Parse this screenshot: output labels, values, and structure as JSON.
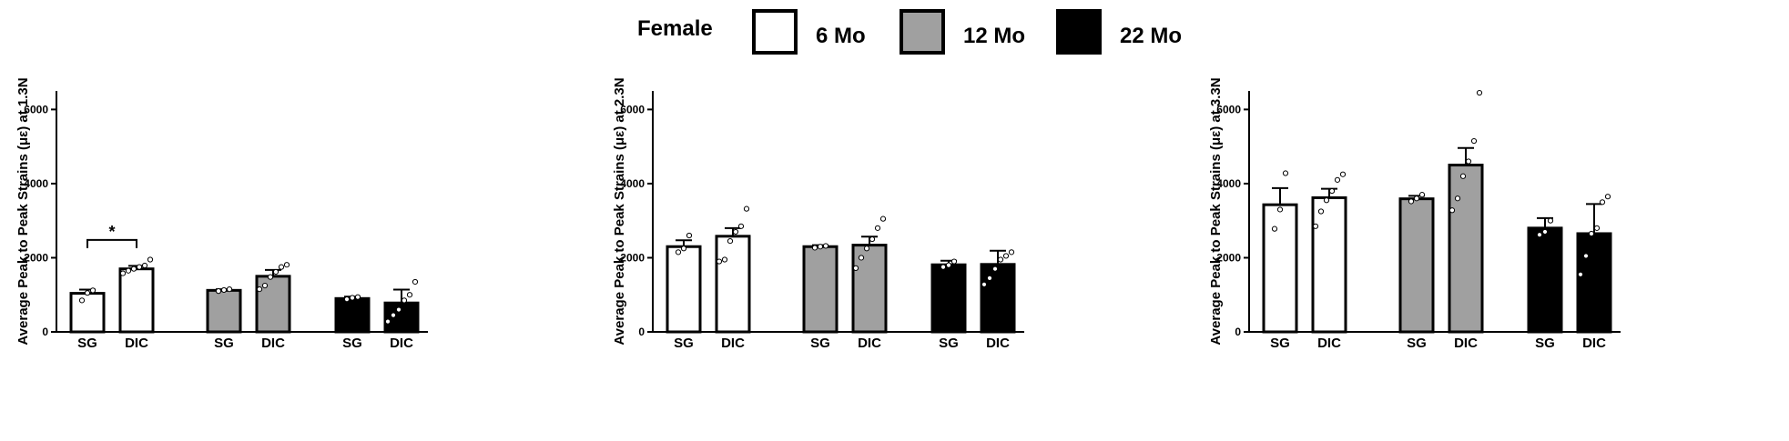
{
  "legend": {
    "title": "Female",
    "items": [
      {
        "label": "6 Mo",
        "color": "#ffffff"
      },
      {
        "label": "12 Mo",
        "color": "#a0a0a0"
      },
      {
        "label": "22 Mo",
        "color": "#000000"
      }
    ]
  },
  "chart_data": [
    {
      "type": "bar",
      "ylabel": "Average Peak to Peak Strains (με) at 1.3N",
      "ylim": [
        0,
        6500
      ],
      "yticks": [
        0,
        2000,
        4000,
        6000
      ],
      "categories": [
        "SG",
        "DIC",
        "SG",
        "DIC",
        "SG",
        "DIC"
      ],
      "groups": [
        "6 Mo",
        "6 Mo",
        "12 Mo",
        "12 Mo",
        "22 Mo",
        "22 Mo"
      ],
      "values": [
        1040,
        1700,
        1120,
        1500,
        900,
        780
      ],
      "errors": [
        100,
        80,
        30,
        170,
        50,
        360
      ],
      "points": [
        [
          850,
          1050,
          1120
        ],
        [
          1580,
          1650,
          1700,
          1750,
          1790,
          1950
        ],
        [
          1100,
          1130,
          1150
        ],
        [
          1150,
          1250,
          1480,
          1620,
          1750,
          1810
        ],
        [
          880,
          920,
          940
        ],
        [
          280,
          450,
          600,
          850,
          1000,
          1350
        ]
      ],
      "significance": {
        "label": "*",
        "between": [
          0,
          1
        ],
        "y": 2480
      }
    },
    {
      "type": "bar",
      "ylabel": "Average Peak to Peak Strains (με) at 2.3N",
      "ylim": [
        0,
        6500
      ],
      "yticks": [
        0,
        2000,
        4000,
        6000
      ],
      "categories": [
        "SG",
        "DIC",
        "SG",
        "DIC",
        "SG",
        "DIC"
      ],
      "groups": [
        "6 Mo",
        "6 Mo",
        "12 Mo",
        "12 Mo",
        "22 Mo",
        "22 Mo"
      ],
      "values": [
        2300,
        2580,
        2300,
        2340,
        1810,
        1820
      ],
      "errors": [
        170,
        220,
        40,
        230,
        110,
        370
      ],
      "points": [
        [
          2150,
          2250,
          2600
        ],
        [
          1900,
          1950,
          2450,
          2700,
          2850,
          3320
        ],
        [
          2270,
          2300,
          2320
        ],
        [
          1720,
          2000,
          2250,
          2500,
          2800,
          3050
        ],
        [
          1750,
          1800,
          1900
        ],
        [
          1280,
          1450,
          1700,
          1950,
          2050,
          2150
        ]
      ]
    },
    {
      "type": "bar",
      "ylabel": "Average Peak to Peak Strains (με) at 3.3N",
      "ylim": [
        0,
        6500
      ],
      "yticks": [
        0,
        2000,
        4000,
        6000
      ],
      "categories": [
        "SG",
        "DIC",
        "SG",
        "DIC",
        "SG",
        "DIC"
      ],
      "groups": [
        "6 Mo",
        "6 Mo",
        "12 Mo",
        "12 Mo",
        "22 Mo",
        "22 Mo"
      ],
      "values": [
        3430,
        3620,
        3590,
        4500,
        2800,
        2650
      ],
      "errors": [
        450,
        240,
        80,
        460,
        270,
        800
      ],
      "points": [
        [
          2780,
          3300,
          4280
        ],
        [
          2850,
          3250,
          3550,
          3800,
          4100,
          4250
        ],
        [
          3520,
          3600,
          3700
        ],
        [
          3280,
          3600,
          4200,
          4600,
          5150,
          6450
        ],
        [
          2620,
          2700,
          3000
        ],
        [
          1550,
          2050,
          2650,
          2800,
          3500,
          3650
        ]
      ]
    }
  ]
}
